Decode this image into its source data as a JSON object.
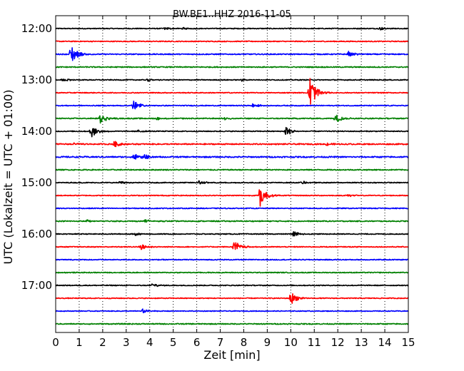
{
  "chart_data": {
    "type": "line",
    "title": "BW.BE1..HHZ 2016-11-05",
    "xlabel": "Zeit  [min]",
    "ylabel": "UTC (Lokalzeit = UTC + 01:00)",
    "xlim": [
      0,
      15
    ],
    "x_ticks": [
      "0",
      "1",
      "2",
      "3",
      "4",
      "5",
      "6",
      "7",
      "8",
      "9",
      "10",
      "11",
      "12",
      "13",
      "14",
      "15"
    ],
    "y_tick_labels": [
      "12:00",
      "13:00",
      "14:00",
      "15:00",
      "16:00",
      "17:00"
    ],
    "grid": "vertical dotted",
    "colors": [
      "#000000",
      "#ff0000",
      "#0000ff",
      "#008000"
    ],
    "traces": [
      {
        "start": "12:00",
        "color": "#000000",
        "noise": 0.6,
        "events": [
          {
            "t": 4.6,
            "a": 2
          },
          {
            "t": 5.4,
            "a": 1.5
          },
          {
            "t": 13.8,
            "a": 2
          }
        ]
      },
      {
        "start": "12:15",
        "color": "#ff0000",
        "noise": 0.6,
        "events": []
      },
      {
        "start": "12:30",
        "color": "#0000ff",
        "noise": 0.7,
        "events": [
          {
            "t": 0.65,
            "a": 16
          },
          {
            "t": 12.45,
            "a": 4
          }
        ]
      },
      {
        "start": "12:45",
        "color": "#008000",
        "noise": 0.7,
        "events": []
      },
      {
        "start": "13:00",
        "color": "#000000",
        "noise": 0.6,
        "events": [
          {
            "t": 0.3,
            "a": 3
          },
          {
            "t": 3.9,
            "a": 2
          },
          {
            "t": 7.9,
            "a": 2
          }
        ]
      },
      {
        "start": "13:15",
        "color": "#ff0000",
        "noise": 0.6,
        "events": [
          {
            "t": 10.8,
            "a": 26
          }
        ]
      },
      {
        "start": "13:30",
        "color": "#0000ff",
        "noise": 0.6,
        "events": [
          {
            "t": 3.3,
            "a": 8
          },
          {
            "t": 8.4,
            "a": 4
          }
        ]
      },
      {
        "start": "13:45",
        "color": "#008000",
        "noise": 0.7,
        "events": [
          {
            "t": 1.9,
            "a": 8
          },
          {
            "t": 4.3,
            "a": 2
          },
          {
            "t": 7.2,
            "a": 2
          },
          {
            "t": 11.9,
            "a": 7
          }
        ]
      },
      {
        "start": "14:00",
        "color": "#000000",
        "noise": 0.6,
        "events": [
          {
            "t": 1.5,
            "a": 9
          },
          {
            "t": 9.8,
            "a": 7
          },
          {
            "t": 3.5,
            "a": 2
          }
        ]
      },
      {
        "start": "14:15",
        "color": "#ff0000",
        "noise": 0.8,
        "events": [
          {
            "t": 2.5,
            "a": 5
          },
          {
            "t": 0.8,
            "a": 2
          },
          {
            "t": 11.5,
            "a": 2
          }
        ]
      },
      {
        "start": "14:30",
        "color": "#0000ff",
        "noise": 0.9,
        "events": [
          {
            "t": 3.3,
            "a": 6
          },
          {
            "t": 3.8,
            "a": 4
          }
        ]
      },
      {
        "start": "14:45",
        "color": "#008000",
        "noise": 0.7,
        "events": []
      },
      {
        "start": "15:00",
        "color": "#000000",
        "noise": 0.6,
        "events": [
          {
            "t": 6.1,
            "a": 3
          },
          {
            "t": 2.7,
            "a": 2
          },
          {
            "t": 10.5,
            "a": 2
          }
        ]
      },
      {
        "start": "15:15",
        "color": "#ff0000",
        "noise": 0.6,
        "events": [
          {
            "t": 8.7,
            "a": 16
          },
          {
            "t": 12.4,
            "a": 2
          }
        ]
      },
      {
        "start": "15:30",
        "color": "#0000ff",
        "noise": 0.6,
        "events": []
      },
      {
        "start": "15:45",
        "color": "#008000",
        "noise": 0.7,
        "events": [
          {
            "t": 3.8,
            "a": 3
          },
          {
            "t": 1.3,
            "a": 2
          }
        ]
      },
      {
        "start": "16:00",
        "color": "#000000",
        "noise": 0.6,
        "events": [
          {
            "t": 10.1,
            "a": 5
          },
          {
            "t": 3.4,
            "a": 2
          }
        ]
      },
      {
        "start": "16:15",
        "color": "#ff0000",
        "noise": 0.6,
        "events": [
          {
            "t": 3.6,
            "a": 5
          },
          {
            "t": 7.6,
            "a": 9
          }
        ]
      },
      {
        "start": "16:30",
        "color": "#0000ff",
        "noise": 0.6,
        "events": []
      },
      {
        "start": "16:45",
        "color": "#008000",
        "noise": 0.6,
        "events": []
      },
      {
        "start": "17:00",
        "color": "#000000",
        "noise": 0.6,
        "events": [
          {
            "t": 4.1,
            "a": 3
          }
        ]
      },
      {
        "start": "17:15",
        "color": "#ff0000",
        "noise": 0.6,
        "events": [
          {
            "t": 10.0,
            "a": 10
          }
        ]
      },
      {
        "start": "17:30",
        "color": "#0000ff",
        "noise": 0.5,
        "events": [
          {
            "t": 3.7,
            "a": 3
          }
        ]
      },
      {
        "start": "17:45",
        "color": "#008000",
        "noise": 0.7,
        "events": []
      }
    ]
  }
}
